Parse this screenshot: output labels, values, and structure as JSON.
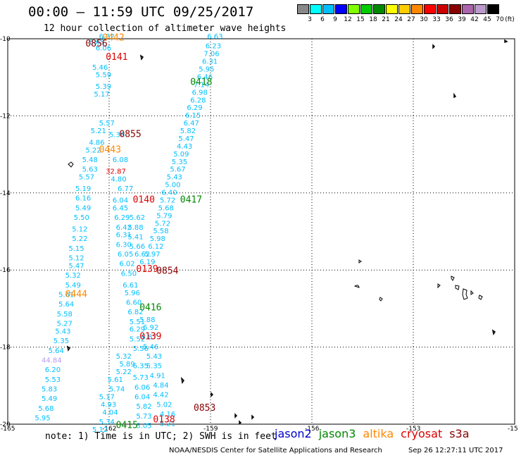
{
  "header": {
    "title": "00:00 – 11:59 UTC 09/25/2017",
    "subtitle": "12 hour collection of altimeter wave heights"
  },
  "colorbar": {
    "unit": "(ft)",
    "labels": [
      "3",
      "6",
      "9",
      "12",
      "15",
      "18",
      "21",
      "24",
      "27",
      "30",
      "33",
      "36",
      "39",
      "42",
      "45",
      "70"
    ],
    "colors": [
      "#888888",
      "#00ffff",
      "#00bfff",
      "#0000ff",
      "#80ff00",
      "#00cc00",
      "#008800",
      "#ffff00",
      "#ffcc00",
      "#ff8800",
      "#ff0000",
      "#cc0000",
      "#880000",
      "#aa66aa",
      "#bb99cc",
      "#000000"
    ]
  },
  "axes": {
    "x_ticks": [
      "-165",
      "-162",
      "-159",
      "-156",
      "-153",
      "-15"
    ],
    "y_ticks": [
      "-10",
      "-12",
      "-14",
      "-16",
      "-18",
      "-20"
    ]
  },
  "footer": {
    "note": "note: 1) Time is in UTC; 2) SWH is in feet",
    "credit": "NOAA/NESDIS Center for Satellite Applications and Research",
    "stamp": "Sep 26 12:27:11 UTC 2017"
  },
  "legend": [
    {
      "name": "jason2",
      "color": "#0000cc"
    },
    {
      "name": "jason3",
      "color": "#008800"
    },
    {
      "name": "altika",
      "color": "#ff8800"
    },
    {
      "name": "cryosat",
      "color": "#dd0000"
    },
    {
      "name": "s3a",
      "color": "#880000"
    }
  ],
  "chart_data": {
    "type": "scatter",
    "xlim": [
      -165,
      -150
    ],
    "ylim": [
      -20,
      -10
    ],
    "pass_times": [
      {
        "label": "0442",
        "lon": -162.2,
        "lat": -10.05,
        "color": "#ff8800"
      },
      {
        "label": "0856",
        "lon": -162.7,
        "lat": -10.2,
        "color": "#880000"
      },
      {
        "label": "0141",
        "lon": -162.1,
        "lat": -10.55,
        "color": "#dd0000"
      },
      {
        "label": "0418",
        "lon": -159.6,
        "lat": -11.2,
        "color": "#008800"
      },
      {
        "label": "0855",
        "lon": -161.7,
        "lat": -12.55,
        "color": "#880000"
      },
      {
        "label": "0443",
        "lon": -162.3,
        "lat": -12.95,
        "color": "#ff8800"
      },
      {
        "label": "0140",
        "lon": -161.3,
        "lat": -14.25,
        "color": "#dd0000"
      },
      {
        "label": "0417",
        "lon": -159.9,
        "lat": -14.25,
        "color": "#008800"
      },
      {
        "label": "0139",
        "lon": -161.2,
        "lat": -16.05,
        "color": "#dd0000"
      },
      {
        "label": "0854",
        "lon": -160.6,
        "lat": -16.1,
        "color": "#880000"
      },
      {
        "label": "0444",
        "lon": -163.3,
        "lat": -16.7,
        "color": "#ff8800"
      },
      {
        "label": "0416",
        "lon": -161.1,
        "lat": -17.05,
        "color": "#008800"
      },
      {
        "label": "0139",
        "lon": -161.1,
        "lat": -17.8,
        "color": "#dd0000"
      },
      {
        "label": "0853",
        "lon": -159.5,
        "lat": -19.65,
        "color": "#880000"
      },
      {
        "label": "0138",
        "lon": -160.7,
        "lat": -19.95,
        "color": "#dd0000"
      },
      {
        "label": "0415",
        "lon": -161.8,
        "lat": -20.1,
        "color": "#008800"
      }
    ],
    "swh_points": [
      {
        "v": "6.32",
        "lon": -162.3,
        "lat": -10.0,
        "c": "#00bfff"
      },
      {
        "v": "5.65",
        "lon": -162.6,
        "lat": -10.15,
        "c": "#00bfff"
      },
      {
        "v": "6.06",
        "lon": -162.4,
        "lat": -10.3,
        "c": "#00bfff"
      },
      {
        "v": "5.46",
        "lon": -162.5,
        "lat": -10.8,
        "c": "#00bfff"
      },
      {
        "v": "5.59",
        "lon": -162.4,
        "lat": -11.0,
        "c": "#00bfff"
      },
      {
        "v": "5.39",
        "lon": -162.4,
        "lat": -11.3,
        "c": "#00bfff"
      },
      {
        "v": "5.17",
        "lon": -162.45,
        "lat": -11.5,
        "c": "#00bfff"
      },
      {
        "v": "5.57",
        "lon": -162.3,
        "lat": -12.25,
        "c": "#00bfff"
      },
      {
        "v": "5.21",
        "lon": -162.55,
        "lat": -12.45,
        "c": "#00bfff"
      },
      {
        "v": "4.86",
        "lon": -162.6,
        "lat": -12.75,
        "c": "#00bfff"
      },
      {
        "v": "5.22",
        "lon": -162.7,
        "lat": -12.95,
        "c": "#00bfff"
      },
      {
        "v": "5.48",
        "lon": -162.8,
        "lat": -13.2,
        "c": "#00bfff"
      },
      {
        "v": "5.63",
        "lon": -162.8,
        "lat": -13.45,
        "c": "#00bfff"
      },
      {
        "v": "5.57",
        "lon": -162.9,
        "lat": -13.65,
        "c": "#00bfff"
      },
      {
        "v": "5.19",
        "lon": -163.0,
        "lat": -13.95,
        "c": "#00bfff"
      },
      {
        "v": "6.16",
        "lon": -163.0,
        "lat": -14.2,
        "c": "#00bfff"
      },
      {
        "v": "5.49",
        "lon": -163.0,
        "lat": -14.45,
        "c": "#00bfff"
      },
      {
        "v": "5.50",
        "lon": -163.05,
        "lat": -14.7,
        "c": "#00bfff"
      },
      {
        "v": "5.12",
        "lon": -163.1,
        "lat": -15.0,
        "c": "#00bfff"
      },
      {
        "v": "5.22",
        "lon": -163.1,
        "lat": -15.25,
        "c": "#00bfff"
      },
      {
        "v": "5.15",
        "lon": -163.2,
        "lat": -15.5,
        "c": "#00bfff"
      },
      {
        "v": "5.12",
        "lon": -163.2,
        "lat": -15.75,
        "c": "#00bfff"
      },
      {
        "v": "5.47",
        "lon": -163.2,
        "lat": -15.95,
        "c": "#00bfff"
      },
      {
        "v": "5.32",
        "lon": -163.3,
        "lat": -16.2,
        "c": "#00bfff"
      },
      {
        "v": "5.49",
        "lon": -163.3,
        "lat": -16.45,
        "c": "#00bfff"
      },
      {
        "v": "5.61",
        "lon": -163.5,
        "lat": -16.7,
        "c": "#00bfff"
      },
      {
        "v": "5.64",
        "lon": -163.5,
        "lat": -16.95,
        "c": "#00bfff"
      },
      {
        "v": "5.58",
        "lon": -163.55,
        "lat": -17.2,
        "c": "#00bfff"
      },
      {
        "v": "5.27",
        "lon": -163.55,
        "lat": -17.45,
        "c": "#00bfff"
      },
      {
        "v": "5.43",
        "lon": -163.6,
        "lat": -17.65,
        "c": "#00bfff"
      },
      {
        "v": "5.35",
        "lon": -163.65,
        "lat": -17.9,
        "c": "#00bfff"
      },
      {
        "v": "5.64",
        "lon": -163.8,
        "lat": -18.15,
        "c": "#00bfff"
      },
      {
        "v": "44.84",
        "lon": -164.0,
        "lat": -18.4,
        "c": "#bb99ee"
      },
      {
        "v": "6.20",
        "lon": -163.9,
        "lat": -18.65,
        "c": "#00bfff"
      },
      {
        "v": "5.53",
        "lon": -163.9,
        "lat": -18.9,
        "c": "#00bfff"
      },
      {
        "v": "5.83",
        "lon": -164.0,
        "lat": -19.15,
        "c": "#00bfff"
      },
      {
        "v": "5.49",
        "lon": -164.0,
        "lat": -19.4,
        "c": "#00bfff"
      },
      {
        "v": "5.68",
        "lon": -164.1,
        "lat": -19.65,
        "c": "#00bfff"
      },
      {
        "v": "5.95",
        "lon": -164.2,
        "lat": -19.9,
        "c": "#00bfff"
      },
      {
        "v": "32.87",
        "lon": -162.1,
        "lat": -13.5,
        "c": "#dd0000"
      },
      {
        "v": "5.36",
        "lon": -162.0,
        "lat": -12.55,
        "c": "#00bfff"
      },
      {
        "v": "6.08",
        "lon": -161.9,
        "lat": -13.2,
        "c": "#00bfff"
      },
      {
        "v": "4.80",
        "lon": -161.95,
        "lat": -13.7,
        "c": "#00bfff"
      },
      {
        "v": "6.77",
        "lon": -161.75,
        "lat": -13.95,
        "c": "#00bfff"
      },
      {
        "v": "6.04",
        "lon": -161.9,
        "lat": -14.25,
        "c": "#00bfff"
      },
      {
        "v": "6.45",
        "lon": -161.9,
        "lat": -14.45,
        "c": "#00bfff"
      },
      {
        "v": "6.29",
        "lon": -161.85,
        "lat": -14.7,
        "c": "#00bfff"
      },
      {
        "v": "6.42",
        "lon": -161.8,
        "lat": -14.95,
        "c": "#00bfff"
      },
      {
        "v": "6.31",
        "lon": -161.8,
        "lat": -15.15,
        "c": "#00bfff"
      },
      {
        "v": "6.30",
        "lon": -161.8,
        "lat": -15.4,
        "c": "#00bfff"
      },
      {
        "v": "6.05",
        "lon": -161.75,
        "lat": -15.65,
        "c": "#00bfff"
      },
      {
        "v": "6.02",
        "lon": -161.7,
        "lat": -15.9,
        "c": "#00bfff"
      },
      {
        "v": "6.50",
        "lon": -161.65,
        "lat": -16.15,
        "c": "#00bfff"
      },
      {
        "v": "6.61",
        "lon": -161.6,
        "lat": -16.45,
        "c": "#00bfff"
      },
      {
        "v": "5.96",
        "lon": -161.55,
        "lat": -16.65,
        "c": "#00bfff"
      },
      {
        "v": "6.60",
        "lon": -161.5,
        "lat": -16.9,
        "c": "#00bfff"
      },
      {
        "v": "6.82",
        "lon": -161.45,
        "lat": -17.15,
        "c": "#00bfff"
      },
      {
        "v": "5.51",
        "lon": -161.4,
        "lat": -17.4,
        "c": "#00bfff"
      },
      {
        "v": "6.29",
        "lon": -161.4,
        "lat": -17.6,
        "c": "#00bfff"
      },
      {
        "v": "5.52",
        "lon": -161.4,
        "lat": -17.85,
        "c": "#00bfff"
      },
      {
        "v": "5.56",
        "lon": -161.3,
        "lat": -18.1,
        "c": "#00bfff"
      },
      {
        "v": "5.32",
        "lon": -161.8,
        "lat": -18.3,
        "c": "#00bfff"
      },
      {
        "v": "5.89",
        "lon": -161.7,
        "lat": -18.5,
        "c": "#00bfff"
      },
      {
        "v": "5.22",
        "lon": -161.8,
        "lat": -18.7,
        "c": "#00bfff"
      },
      {
        "v": "5.61",
        "lon": -162.05,
        "lat": -18.9,
        "c": "#00bfff"
      },
      {
        "v": "5.74",
        "lon": -162.0,
        "lat": -19.15,
        "c": "#00bfff"
      },
      {
        "v": "5.17",
        "lon": -162.3,
        "lat": -19.35,
        "c": "#00bfff"
      },
      {
        "v": "4.93",
        "lon": -162.25,
        "lat": -19.55,
        "c": "#00bfff"
      },
      {
        "v": "4.04",
        "lon": -162.2,
        "lat": -19.75,
        "c": "#00bfff"
      },
      {
        "v": "5.34",
        "lon": -162.3,
        "lat": -20.0,
        "c": "#00bfff"
      },
      {
        "v": "5.12",
        "lon": -162.5,
        "lat": -20.2,
        "c": "#00bfff"
      },
      {
        "v": "6.35",
        "lon": -161.3,
        "lat": -18.55,
        "c": "#00bfff"
      },
      {
        "v": "5.73",
        "lon": -161.3,
        "lat": -18.85,
        "c": "#00bfff"
      },
      {
        "v": "6.06",
        "lon": -161.25,
        "lat": -19.1,
        "c": "#00bfff"
      },
      {
        "v": "6.04",
        "lon": -161.25,
        "lat": -19.35,
        "c": "#00bfff"
      },
      {
        "v": "5.82",
        "lon": -161.2,
        "lat": -19.6,
        "c": "#00bfff"
      },
      {
        "v": "5.73",
        "lon": -161.2,
        "lat": -19.85,
        "c": "#00bfff"
      },
      {
        "v": "5.05",
        "lon": -161.2,
        "lat": -20.1,
        "c": "#00bfff"
      },
      {
        "v": "5.62",
        "lon": -161.4,
        "lat": -14.7,
        "c": "#00bfff"
      },
      {
        "v": "5.88",
        "lon": -161.45,
        "lat": -14.95,
        "c": "#00bfff"
      },
      {
        "v": "5.41",
        "lon": -161.45,
        "lat": -15.2,
        "c": "#00bfff"
      },
      {
        "v": "5.66",
        "lon": -161.4,
        "lat": -15.45,
        "c": "#00bfff"
      },
      {
        "v": "6.62",
        "lon": -161.25,
        "lat": -15.65,
        "c": "#00bfff"
      },
      {
        "v": "6.19",
        "lon": -161.1,
        "lat": -15.85,
        "c": "#00bfff"
      },
      {
        "v": "6.63",
        "lon": -159.1,
        "lat": -10.0,
        "c": "#00bfff"
      },
      {
        "v": "6.23",
        "lon": -159.15,
        "lat": -10.25,
        "c": "#00bfff"
      },
      {
        "v": "7.06",
        "lon": -159.2,
        "lat": -10.45,
        "c": "#00bfff"
      },
      {
        "v": "6.31",
        "lon": -159.25,
        "lat": -10.65,
        "c": "#00bfff"
      },
      {
        "v": "5.95",
        "lon": -159.35,
        "lat": -10.85,
        "c": "#00bfff"
      },
      {
        "v": "6.46",
        "lon": -159.4,
        "lat": -11.05,
        "c": "#00bfff"
      },
      {
        "v": "7.14",
        "lon": -159.5,
        "lat": -11.25,
        "c": "#00bfff"
      },
      {
        "v": "6.98",
        "lon": -159.55,
        "lat": -11.45,
        "c": "#00bfff"
      },
      {
        "v": "6.28",
        "lon": -159.6,
        "lat": -11.65,
        "c": "#00bfff"
      },
      {
        "v": "6.29",
        "lon": -159.7,
        "lat": -11.85,
        "c": "#00bfff"
      },
      {
        "v": "6.15",
        "lon": -159.75,
        "lat": -12.05,
        "c": "#00bfff"
      },
      {
        "v": "6.47",
        "lon": -159.8,
        "lat": -12.25,
        "c": "#00bfff"
      },
      {
        "v": "5.82",
        "lon": -159.9,
        "lat": -12.45,
        "c": "#00bfff"
      },
      {
        "v": "5.47",
        "lon": -159.95,
        "lat": -12.65,
        "c": "#00bfff"
      },
      {
        "v": "4.43",
        "lon": -160.0,
        "lat": -12.85,
        "c": "#00bfff"
      },
      {
        "v": "5.09",
        "lon": -160.1,
        "lat": -13.05,
        "c": "#00bfff"
      },
      {
        "v": "5.35",
        "lon": -160.15,
        "lat": -13.25,
        "c": "#00bfff"
      },
      {
        "v": "5.67",
        "lon": -160.2,
        "lat": -13.45,
        "c": "#00bfff"
      },
      {
        "v": "5.43",
        "lon": -160.3,
        "lat": -13.65,
        "c": "#00bfff"
      },
      {
        "v": "5.00",
        "lon": -160.35,
        "lat": -13.85,
        "c": "#00bfff"
      },
      {
        "v": "6.40",
        "lon": -160.45,
        "lat": -14.05,
        "c": "#00bfff"
      },
      {
        "v": "5.72",
        "lon": -160.5,
        "lat": -14.25,
        "c": "#00bfff"
      },
      {
        "v": "5.68",
        "lon": -160.55,
        "lat": -14.45,
        "c": "#00bfff"
      },
      {
        "v": "5.79",
        "lon": -160.6,
        "lat": -14.65,
        "c": "#00bfff"
      },
      {
        "v": "5.72",
        "lon": -160.65,
        "lat": -14.85,
        "c": "#00bfff"
      },
      {
        "v": "5.58",
        "lon": -160.7,
        "lat": -15.05,
        "c": "#00bfff"
      },
      {
        "v": "5.98",
        "lon": -160.8,
        "lat": -15.25,
        "c": "#00bfff"
      },
      {
        "v": "6.12",
        "lon": -160.85,
        "lat": -15.45,
        "c": "#00bfff"
      },
      {
        "v": "5.97",
        "lon": -160.95,
        "lat": -15.65,
        "c": "#00bfff"
      },
      {
        "v": "5.88",
        "lon": -161.1,
        "lat": -17.35,
        "c": "#00bfff"
      },
      {
        "v": "6.92",
        "lon": -161.0,
        "lat": -17.55,
        "c": "#00bfff"
      },
      {
        "v": "5.87",
        "lon": -161.05,
        "lat": -17.8,
        "c": "#00bfff"
      },
      {
        "v": "5.46",
        "lon": -161.0,
        "lat": -18.05,
        "c": "#00bfff"
      },
      {
        "v": "5.43",
        "lon": -160.9,
        "lat": -18.3,
        "c": "#00bfff"
      },
      {
        "v": "5.35",
        "lon": -160.9,
        "lat": -18.55,
        "c": "#00bfff"
      },
      {
        "v": "4.91",
        "lon": -160.8,
        "lat": -18.8,
        "c": "#00bfff"
      },
      {
        "v": "4.84",
        "lon": -160.7,
        "lat": -19.05,
        "c": "#00bfff"
      },
      {
        "v": "4.42",
        "lon": -160.7,
        "lat": -19.3,
        "c": "#00bfff"
      },
      {
        "v": "5.02",
        "lon": -160.6,
        "lat": -19.55,
        "c": "#00bfff"
      },
      {
        "v": "4.16",
        "lon": -160.5,
        "lat": -19.8,
        "c": "#00bfff"
      },
      {
        "v": "5.21",
        "lon": -160.5,
        "lat": -20.05,
        "c": "#00bfff"
      }
    ]
  }
}
